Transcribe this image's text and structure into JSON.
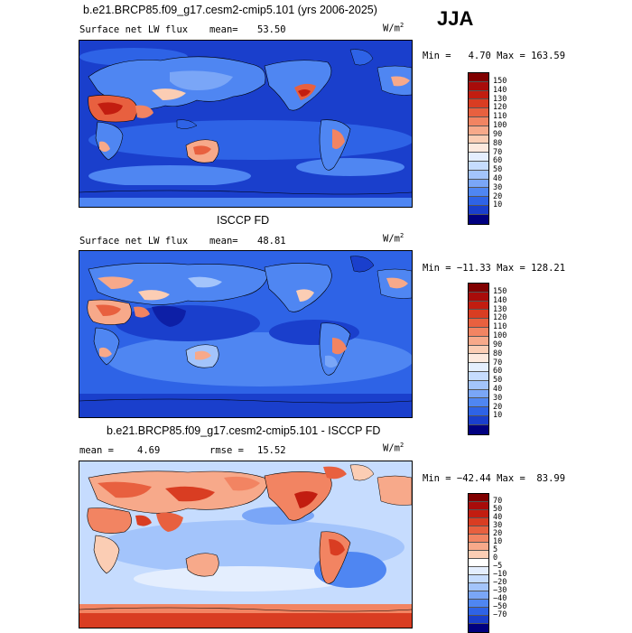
{
  "figure": {
    "season": "JJA",
    "colors": {
      "abs_scale": [
        "#000080",
        "#0d1fa6",
        "#1a3fcc",
        "#2e63e6",
        "#4f86f2",
        "#7aa6f7",
        "#a3c4fb",
        "#c6dcfe",
        "#e4eefe",
        "#fde9de",
        "#fbcdb4",
        "#f7a98a",
        "#f28462",
        "#e8603f",
        "#d93d22",
        "#c21d10",
        "#a80c0a",
        "#800000"
      ],
      "diff_scale": [
        "#000080",
        "#0d1fa6",
        "#1a3fcc",
        "#2e63e6",
        "#4f86f2",
        "#7aa6f7",
        "#a3c4fb",
        "#c6dcfe",
        "#e4eefe",
        "#ffffff",
        "#fde9de",
        "#fbcdb4",
        "#f7a98a",
        "#f28462",
        "#e8603f",
        "#d93d22",
        "#c21d10",
        "#a80c0a",
        "#800000"
      ]
    }
  },
  "panels": [
    {
      "title": "b.e21.BRCP85.f09_g17.cesm2-cmip5.101 (yrs 2006-2025)",
      "left_label": "Surface net LW flux",
      "stat_label": "mean=",
      "stat_value": "53.50",
      "units_base": "W/m",
      "units_exp": "2",
      "minmax": "Min =   4.70 Max = 163.59",
      "colorbar_labels": [
        "150",
        "140",
        "130",
        "120",
        "110",
        "100",
        "90",
        "80",
        "70",
        "60",
        "50",
        "40",
        "30",
        "20",
        "10"
      ]
    },
    {
      "title": "ISCCP FD",
      "left_label": "Surface net LW flux",
      "stat_label": "mean=",
      "stat_value": "48.81",
      "units_base": "W/m",
      "units_exp": "2",
      "minmax": "Min = −11.33 Max = 128.21",
      "colorbar_labels": [
        "150",
        "140",
        "130",
        "120",
        "110",
        "100",
        "90",
        "80",
        "70",
        "60",
        "50",
        "40",
        "30",
        "20",
        "10"
      ]
    },
    {
      "title": "b.e21.BRCP85.f09_g17.cesm2-cmip5.101 - ISCCP FD",
      "mean_label": "mean =",
      "mean_value": "4.69",
      "rmse_label": "rmse =",
      "rmse_value": "15.52",
      "units_base": "W/m",
      "units_exp": "2",
      "minmax": "Min = −42.44 Max =  83.99",
      "colorbar_labels": [
        "70",
        "50",
        "40",
        "30",
        "20",
        "10",
        "5",
        "0",
        "−5",
        "−10",
        "−20",
        "−30",
        "−40",
        "−50",
        "−70"
      ]
    }
  ]
}
